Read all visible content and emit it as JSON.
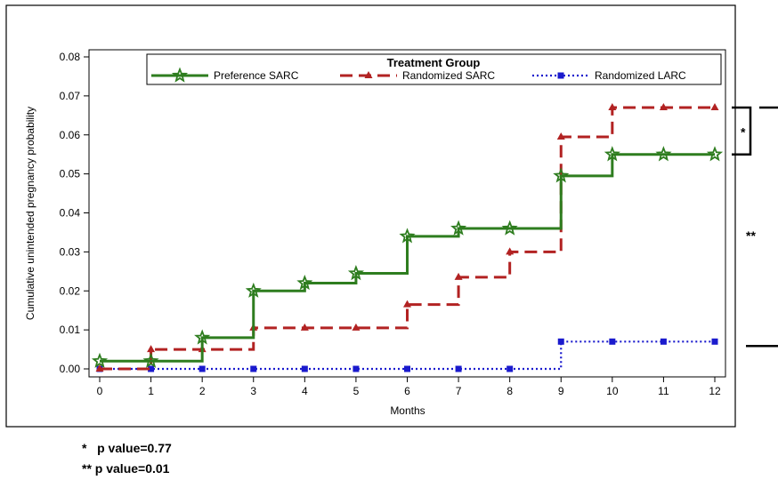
{
  "chart_data": {
    "type": "line",
    "xlabel": "Months",
    "ylabel": "Cumulative unintended pregnancy probability",
    "xlim": [
      0,
      12
    ],
    "ylim": [
      0,
      0.08
    ],
    "x_ticks": [
      "0",
      "1",
      "2",
      "3",
      "4",
      "5",
      "6",
      "7",
      "8",
      "9",
      "10",
      "11",
      "12"
    ],
    "y_ticks": [
      "0.00",
      "0.01",
      "0.02",
      "0.03",
      "0.04",
      "0.05",
      "0.06",
      "0.07",
      "0.08"
    ],
    "legend_title": "Treatment Group",
    "legend_position": "top",
    "grid": false,
    "step": true,
    "series": [
      {
        "name": "Preference SARC",
        "color": "#2e7d1f",
        "marker": "star",
        "line_style": "solid",
        "x": [
          0,
          1,
          2,
          3,
          4,
          5,
          6,
          7,
          8,
          9,
          10,
          11,
          12
        ],
        "y": [
          0.002,
          0.002,
          0.008,
          0.02,
          0.022,
          0.0245,
          0.034,
          0.036,
          0.036,
          0.0495,
          0.055,
          0.055,
          0.055
        ]
      },
      {
        "name": "Randomized SARC",
        "color": "#b22222",
        "marker": "triangle",
        "line_style": "dashed",
        "x": [
          0,
          1,
          2,
          3,
          4,
          5,
          6,
          7,
          8,
          9,
          10,
          11,
          12
        ],
        "y": [
          0.0,
          0.005,
          0.005,
          0.0105,
          0.0105,
          0.0105,
          0.0165,
          0.0235,
          0.03,
          0.0595,
          0.067,
          0.067,
          0.067
        ]
      },
      {
        "name": "Randomized LARC",
        "color": "#1a1acd",
        "marker": "square",
        "line_style": "dotted",
        "x": [
          0,
          1,
          2,
          3,
          4,
          5,
          6,
          7,
          8,
          9,
          10,
          11,
          12
        ],
        "y": [
          0.0,
          0.0,
          0.0,
          0.0,
          0.0,
          0.0,
          0.0,
          0.0,
          0.0,
          0.007,
          0.007,
          0.007,
          0.007
        ]
      }
    ],
    "annotations": [
      {
        "label": "*",
        "between": [
          "Randomized SARC",
          "Preference SARC"
        ]
      },
      {
        "label": "**",
        "between": [
          "Randomized SARC",
          "Randomized LARC"
        ]
      }
    ]
  },
  "footnotes": [
    {
      "text": "*   p value=0.77"
    },
    {
      "text": "** p value=0.01"
    }
  ]
}
